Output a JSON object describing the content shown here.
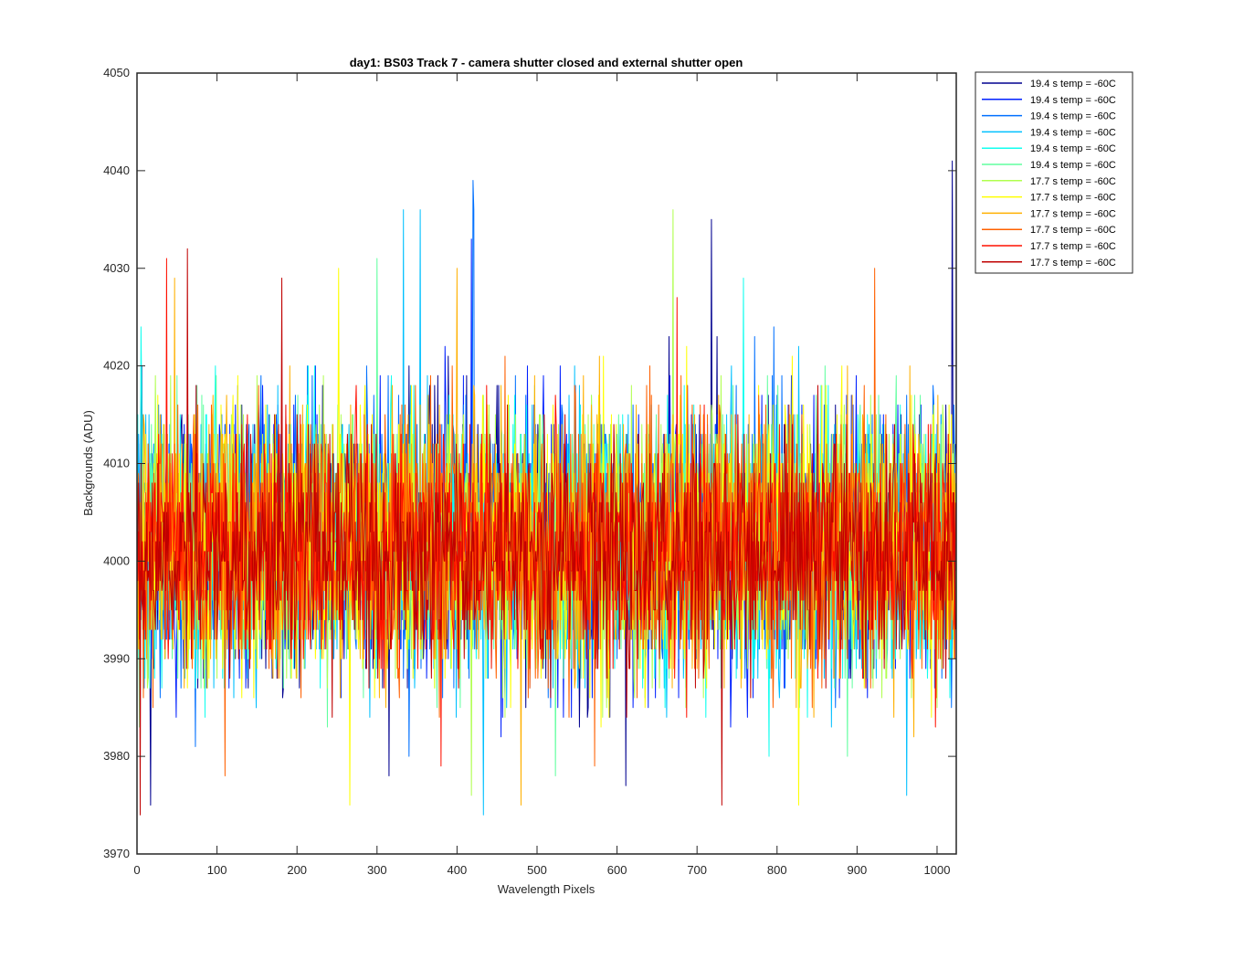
{
  "chart_data": {
    "type": "line",
    "title": "day1: BS03  Track 7 - camera shutter closed and external shutter open",
    "xlabel": "Wavelength Pixels",
    "ylabel": "Backgrounds (ADU)",
    "xlim": [
      0,
      1024
    ],
    "ylim": [
      3970,
      4050
    ],
    "xticks": [
      0,
      100,
      200,
      300,
      400,
      500,
      600,
      700,
      800,
      900,
      1000
    ],
    "yticks": [
      3970,
      3980,
      3990,
      4000,
      4010,
      4020,
      4030,
      4040,
      4050
    ],
    "legend_position": "outside-top-right",
    "grid": false,
    "n_points_per_series": 1024,
    "series": [
      {
        "name": "19.4 s temp = -60C",
        "color": "#00008f",
        "mean": 4002,
        "spread": 7,
        "peaks": [
          [
            1019,
            4041
          ],
          [
            718,
            4035
          ],
          [
            17,
            3975
          ],
          [
            315,
            3978
          ],
          [
            611,
            3977
          ]
        ]
      },
      {
        "name": "19.4 s temp = -60C",
        "color": "#0020ff",
        "mean": 4002,
        "spread": 7,
        "peaks": [
          [
            418,
            4033
          ],
          [
            455,
            3982
          ],
          [
            620,
            3985
          ]
        ]
      },
      {
        "name": "19.4 s temp = -60C",
        "color": "#0070ff",
        "mean": 4002,
        "spread": 7,
        "peaks": [
          [
            420,
            4039
          ],
          [
            421,
            4036
          ],
          [
            340,
            3980
          ]
        ]
      },
      {
        "name": "19.4 s temp = -60C",
        "color": "#00c0ff",
        "mean": 4002,
        "spread": 7,
        "peaks": [
          [
            333,
            4036
          ],
          [
            354,
            4036
          ],
          [
            433,
            3974
          ],
          [
            962,
            3976
          ]
        ]
      },
      {
        "name": "19.4 s temp = -60C",
        "color": "#10ffef",
        "mean": 4002,
        "spread": 7,
        "peaks": [
          [
            5,
            4024
          ],
          [
            758,
            4029
          ],
          [
            790,
            3980
          ]
        ]
      },
      {
        "name": "19.4 s temp = -60C",
        "color": "#60ff9f",
        "mean": 4002,
        "spread": 7,
        "peaks": [
          [
            300,
            4031
          ],
          [
            523,
            3978
          ],
          [
            888,
            3980
          ]
        ]
      },
      {
        "name": "17.7 s temp = -60C",
        "color": "#b0ff4f",
        "mean": 4002,
        "spread": 7,
        "peaks": [
          [
            670,
            4036
          ],
          [
            418,
            3976
          ],
          [
            1000,
            3985
          ]
        ]
      },
      {
        "name": "17.7 s temp = -60C",
        "color": "#ffff00",
        "mean": 4002,
        "spread": 7,
        "peaks": [
          [
            252,
            4030
          ],
          [
            266,
            3975
          ],
          [
            827,
            3975
          ]
        ]
      },
      {
        "name": "17.7 s temp = -60C",
        "color": "#ffb000",
        "mean": 4002,
        "spread": 7,
        "peaks": [
          [
            400,
            4030
          ],
          [
            480,
            3975
          ],
          [
            47,
            4029
          ]
        ]
      },
      {
        "name": "17.7 s temp = -60C",
        "color": "#ff6000",
        "mean": 4002,
        "spread": 7,
        "peaks": [
          [
            922,
            4030
          ],
          [
            572,
            3979
          ],
          [
            110,
            3978
          ]
        ]
      },
      {
        "name": "17.7 s temp = -60C",
        "color": "#ff1000",
        "mean": 4001,
        "spread": 6,
        "peaks": [
          [
            37,
            4031
          ],
          [
            675,
            4027
          ],
          [
            380,
            3979
          ]
        ]
      },
      {
        "name": "17.7 s temp = -60C",
        "color": "#c00000",
        "mean": 4001,
        "spread": 6,
        "peaks": [
          [
            63,
            4032
          ],
          [
            4,
            3974
          ],
          [
            731,
            3975
          ],
          [
            181,
            4029
          ]
        ]
      }
    ]
  }
}
